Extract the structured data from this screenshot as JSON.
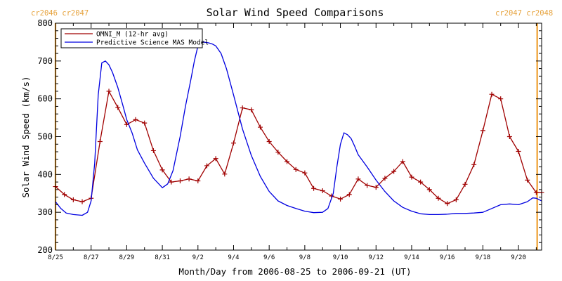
{
  "colors": {
    "omni": "#a00000",
    "mas": "#0000e0",
    "carrington": "#f0a030",
    "axis": "#000000"
  },
  "carrington_labels": {
    "left": "cr2046 cr2047",
    "right": "cr2047 cr2048"
  },
  "chart_data": {
    "type": "line",
    "title": "Solar Wind Speed Comparisons",
    "xlabel": "Month/Day from 2006-08-25 to 2006-09-21 (UT)",
    "ylabel": "Solar Wind Speed (km/s)",
    "xlim": [
      0,
      27.3
    ],
    "ylim": [
      200,
      800
    ],
    "yticks": [
      200,
      300,
      400,
      500,
      600,
      700,
      800
    ],
    "xticks": [
      {
        "day": 0,
        "label": "8/25"
      },
      {
        "day": 2,
        "label": "8/27"
      },
      {
        "day": 4,
        "label": "8/29"
      },
      {
        "day": 6,
        "label": "8/31"
      },
      {
        "day": 8,
        "label": "9/2"
      },
      {
        "day": 10,
        "label": "9/4"
      },
      {
        "day": 12,
        "label": "9/6"
      },
      {
        "day": 14,
        "label": "9/8"
      },
      {
        "day": 16,
        "label": "9/10"
      },
      {
        "day": 18,
        "label": "9/12"
      },
      {
        "day": 20,
        "label": "9/14"
      },
      {
        "day": 22,
        "label": "9/16"
      },
      {
        "day": 24,
        "label": "9/18"
      },
      {
        "day": 26,
        "label": "9/20"
      }
    ],
    "carrington_boundaries": [
      0,
      27.05
    ],
    "legend_position": "top-left",
    "series": [
      {
        "name": "OMNI_M (12-hr avg)",
        "color": "#a00000",
        "markers": "plus",
        "x": [
          0,
          0.5,
          1,
          1.5,
          2,
          2.5,
          3,
          3.5,
          4,
          4.5,
          5,
          5.5,
          6,
          6.5,
          7,
          7.5,
          8,
          8.5,
          9,
          9.5,
          10,
          10.5,
          11,
          11.5,
          12,
          12.5,
          13,
          13.5,
          14,
          14.5,
          15,
          15.5,
          16,
          16.5,
          17,
          17.5,
          18,
          18.5,
          19,
          19.5,
          20,
          20.5,
          21,
          21.5,
          22,
          22.5,
          23,
          23.5,
          24,
          24.5,
          25,
          25.5,
          26,
          26.5,
          27,
          27.3
        ],
        "y": [
          368,
          347,
          333,
          328,
          337,
          487,
          620,
          577,
          532,
          545,
          536,
          463,
          412,
          380,
          383,
          388,
          383,
          423,
          442,
          401,
          483,
          576,
          571,
          525,
          487,
          459,
          434,
          413,
          404,
          363,
          357,
          343,
          335,
          347,
          388,
          371,
          366,
          390,
          408,
          434,
          393,
          380,
          360,
          337,
          323,
          333,
          374,
          426,
          516,
          612,
          600,
          500,
          461,
          385,
          352,
          352
        ]
      },
      {
        "name": "Predictive Science MAS Model",
        "color": "#0000e0",
        "markers": "none",
        "x": [
          0,
          0.3,
          0.6,
          1,
          1.5,
          1.8,
          2,
          2.2,
          2.4,
          2.6,
          2.8,
          3,
          3.2,
          3.5,
          3.8,
          4,
          4.3,
          4.6,
          5,
          5.5,
          6,
          6.3,
          6.6,
          7,
          7.3,
          7.6,
          7.8,
          8,
          8.3,
          8.6,
          8.8,
          9,
          9.3,
          9.6,
          10,
          10.5,
          11,
          11.5,
          12,
          12.5,
          13,
          13.5,
          14,
          14.5,
          15,
          15.3,
          15.6,
          15.8,
          16,
          16.2,
          16.4,
          16.6,
          16.8,
          17,
          17.5,
          18,
          18.5,
          19,
          19.5,
          20,
          20.5,
          21,
          21.5,
          22,
          22.5,
          23,
          23.5,
          24,
          24.5,
          25,
          25.5,
          26,
          26.5,
          26.8,
          27,
          27.3
        ],
        "y": [
          328,
          310,
          298,
          294,
          292,
          300,
          330,
          430,
          610,
          695,
          700,
          690,
          670,
          630,
          580,
          545,
          510,
          465,
          430,
          390,
          365,
          375,
          410,
          500,
          580,
          650,
          700,
          740,
          750,
          748,
          745,
          740,
          720,
          680,
          610,
          520,
          450,
          395,
          355,
          330,
          318,
          310,
          303,
          299,
          300,
          310,
          350,
          420,
          480,
          510,
          505,
          495,
          475,
          452,
          420,
          385,
          355,
          330,
          313,
          303,
          296,
          294,
          294,
          295,
          297,
          297,
          298,
          300,
          310,
          320,
          322,
          320,
          328,
          338,
          337,
          330
        ]
      }
    ]
  }
}
